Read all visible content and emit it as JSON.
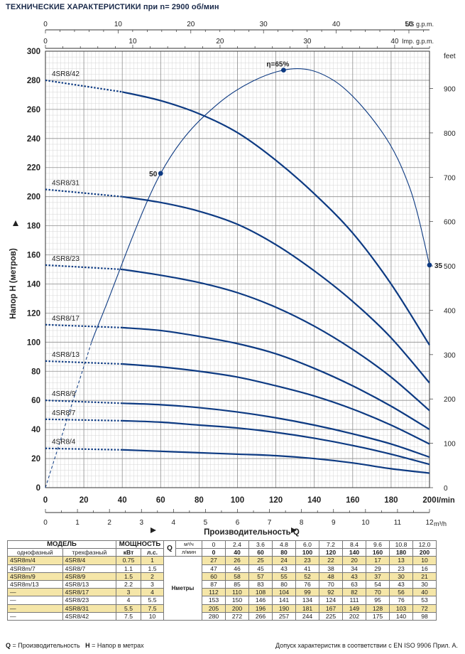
{
  "title": "ТЕХНИЧЕСКИЕ ХАРАКТЕРИСТИКИ при n= 2900 об/мин",
  "chart_data": {
    "type": "line",
    "xlabel": "Производительность  Q",
    "ylabel": "Напор  H   (метров)",
    "x_unit": "l/min",
    "xlim": [
      0,
      200
    ],
    "ylim": [
      0,
      300
    ],
    "x_ticks": [
      0,
      20,
      40,
      60,
      80,
      100,
      120,
      140,
      160,
      180,
      200
    ],
    "y_ticks": [
      0,
      20,
      40,
      60,
      80,
      100,
      120,
      140,
      160,
      180,
      200,
      220,
      240,
      260,
      280,
      300
    ],
    "secondary_axes": {
      "us_gpm": {
        "label": "US g.p.m.",
        "ticks": [
          0,
          10,
          20,
          30,
          40,
          50
        ]
      },
      "imp_gpm": {
        "label": "Imp. g.p.m.",
        "ticks": [
          0,
          10,
          20,
          30,
          40
        ]
      },
      "m3h": {
        "label": "m³/h",
        "ticks": [
          0,
          1,
          2,
          3,
          4,
          5,
          6,
          7,
          8,
          9,
          10,
          11,
          12
        ]
      },
      "feet": {
        "label": "feet",
        "ticks": [
          0,
          100,
          200,
          300,
          400,
          500,
          600,
          700,
          800,
          900
        ]
      }
    },
    "grid": true,
    "x": [
      0,
      40,
      60,
      80,
      100,
      120,
      140,
      160,
      180,
      200
    ],
    "series": [
      {
        "name": "4SR8/4",
        "values": [
          27,
          26,
          25,
          24,
          23,
          22,
          20,
          17,
          13,
          10
        ]
      },
      {
        "name": "4SR8/7",
        "values": [
          47,
          46,
          45,
          43,
          41,
          38,
          34,
          29,
          23,
          16
        ]
      },
      {
        "name": "4SR8/9",
        "values": [
          60,
          58,
          57,
          55,
          52,
          48,
          43,
          37,
          30,
          21
        ]
      },
      {
        "name": "4SR8/13",
        "values": [
          87,
          85,
          83,
          80,
          76,
          70,
          63,
          54,
          43,
          30
        ]
      },
      {
        "name": "4SR8/17",
        "values": [
          112,
          110,
          108,
          104,
          99,
          92,
          82,
          70,
          56,
          40
        ]
      },
      {
        "name": "4SR8/23",
        "values": [
          153,
          150,
          146,
          141,
          134,
          124,
          111,
          95,
          76,
          53
        ]
      },
      {
        "name": "4SR8/31",
        "values": [
          205,
          200,
          196,
          190,
          181,
          167,
          149,
          128,
          103,
          72
        ]
      },
      {
        "name": "4SR8/42",
        "values": [
          280,
          272,
          266,
          257,
          244,
          225,
          202,
          175,
          140,
          98
        ]
      }
    ],
    "efficiency_curve": {
      "label": "η=65%",
      "points": [
        [
          0,
          0
        ],
        [
          30,
          120
        ],
        [
          60,
          216
        ],
        [
          90,
          264
        ],
        [
          124,
          287
        ],
        [
          150,
          280
        ],
        [
          175,
          245
        ],
        [
          190,
          205
        ],
        [
          200,
          153
        ]
      ],
      "markers": [
        {
          "x": 60,
          "y": 216,
          "label": "50"
        },
        {
          "x": 124,
          "y": 287,
          "label": "η=65%"
        },
        {
          "x": 200,
          "y": 153,
          "label": "35"
        }
      ]
    }
  },
  "table": {
    "model_header": "МОДЕЛЬ",
    "power_header": "МОЩНОСТЬ",
    "single_phase": "однофазный",
    "three_phase": "трехфазный",
    "kw": "кВт",
    "hp": "л.с.",
    "q_label": "Q",
    "h_label": "Hметры",
    "m3h_unit": "м³/ч",
    "lmin_unit": "л/мин",
    "m3h_values": [
      "0",
      "2.4",
      "3.6",
      "4.8",
      "6.0",
      "7.2",
      "8.4",
      "9.6",
      "10.8",
      "12.0"
    ],
    "lmin_values": [
      "0",
      "40",
      "60",
      "80",
      "100",
      "120",
      "140",
      "160",
      "180",
      "200"
    ],
    "rows": [
      {
        "single": "4SR8m/4",
        "three": "4SR8/4",
        "kw": "0.75",
        "hp": "1",
        "h": [
          "27",
          "26",
          "25",
          "24",
          "23",
          "22",
          "20",
          "17",
          "13",
          "10"
        ]
      },
      {
        "single": "4SR8m/7",
        "three": "4SR8/7",
        "kw": "1.1",
        "hp": "1.5",
        "h": [
          "47",
          "46",
          "45",
          "43",
          "41",
          "38",
          "34",
          "29",
          "23",
          "16"
        ]
      },
      {
        "single": "4SR8m/9",
        "three": "4SR8/9",
        "kw": "1.5",
        "hp": "2",
        "h": [
          "60",
          "58",
          "57",
          "55",
          "52",
          "48",
          "43",
          "37",
          "30",
          "21"
        ]
      },
      {
        "single": "4SR8m/13",
        "three": "4SR8/13",
        "kw": "2.2",
        "hp": "3",
        "h": [
          "87",
          "85",
          "83",
          "80",
          "76",
          "70",
          "63",
          "54",
          "43",
          "30"
        ]
      },
      {
        "single": "—",
        "three": "4SR8/17",
        "kw": "3",
        "hp": "4",
        "h": [
          "112",
          "110",
          "108",
          "104",
          "99",
          "92",
          "82",
          "70",
          "56",
          "40"
        ]
      },
      {
        "single": "—",
        "three": "4SR8/23",
        "kw": "4",
        "hp": "5.5",
        "h": [
          "153",
          "150",
          "146",
          "141",
          "134",
          "124",
          "111",
          "95",
          "76",
          "53"
        ]
      },
      {
        "single": "—",
        "three": "4SR8/31",
        "kw": "5.5",
        "hp": "7.5",
        "h": [
          "205",
          "200",
          "196",
          "190",
          "181",
          "167",
          "149",
          "128",
          "103",
          "72"
        ]
      },
      {
        "single": "—",
        "three": "4SR8/42",
        "kw": "7.5",
        "hp": "10",
        "h": [
          "280",
          "272",
          "266",
          "257",
          "244",
          "225",
          "202",
          "175",
          "140",
          "98"
        ]
      }
    ]
  },
  "footer": {
    "q_abbr": "Q",
    "q_def": " = Производительность",
    "h_abbr": "H",
    "h_def": " = Напор в метрах",
    "tolerance": "Допуск характеристик в соответствии с EN ISO 9906 Прил.  A."
  },
  "colors": {
    "curve": "#0d3a82",
    "grid": "#b9b9b9",
    "highlight": "#f5e6a8",
    "axis": "#222222"
  }
}
